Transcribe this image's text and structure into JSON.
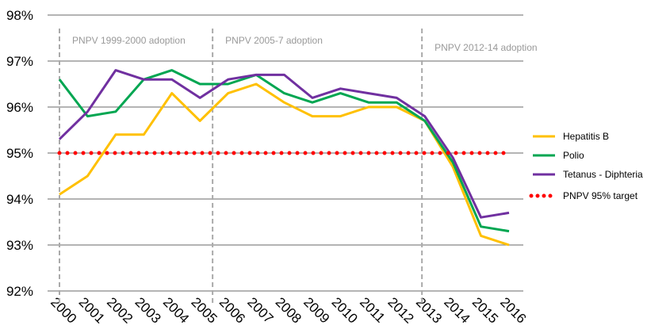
{
  "chart_data": {
    "type": "line",
    "title": "",
    "xlabel": "",
    "ylabel": "",
    "x": [
      2000,
      2001,
      2002,
      2003,
      2004,
      2005,
      2006,
      2007,
      2008,
      2009,
      2010,
      2011,
      2012,
      2013,
      2014,
      2015,
      2016
    ],
    "ylim": [
      92,
      98
    ],
    "yticks": [
      "92%",
      "93%",
      "94%",
      "95%",
      "96%",
      "97%",
      "98%"
    ],
    "grid": true,
    "legend": "right",
    "series": [
      {
        "name": "Hepatitis B",
        "color": "#ffc000",
        "values": [
          94.1,
          94.5,
          95.4,
          95.4,
          96.3,
          95.7,
          96.3,
          96.5,
          96.1,
          95.8,
          95.8,
          96.0,
          96.0,
          95.7,
          94.7,
          93.2,
          93.0
        ]
      },
      {
        "name": "Polio",
        "color": "#00a651",
        "values": [
          96.6,
          95.8,
          95.9,
          96.6,
          96.8,
          96.5,
          96.5,
          96.7,
          96.3,
          96.1,
          96.3,
          96.1,
          96.1,
          95.7,
          94.8,
          93.4,
          93.3
        ]
      },
      {
        "name": "Tetanus - Diphteria",
        "color": "#7030a0",
        "values": [
          95.3,
          95.9,
          96.8,
          96.6,
          96.6,
          96.2,
          96.6,
          96.7,
          96.7,
          96.2,
          96.4,
          96.3,
          96.2,
          95.8,
          94.9,
          93.6,
          93.7
        ]
      },
      {
        "name": "PNPV 95% target",
        "color": "#ff0000",
        "style": "dotted",
        "values": [
          95,
          95,
          95,
          95,
          95,
          95,
          95,
          95,
          95,
          95,
          95,
          95,
          95,
          95,
          95,
          95,
          95
        ]
      }
    ],
    "annotations": [
      {
        "text": "PNPV 1999-2000 adoption",
        "x": 2000
      },
      {
        "text": "PNPV 2005-7 adoption",
        "x": 2005.45
      },
      {
        "text": "PNPV 2012-14 adoption",
        "x": 2012.9
      }
    ]
  }
}
